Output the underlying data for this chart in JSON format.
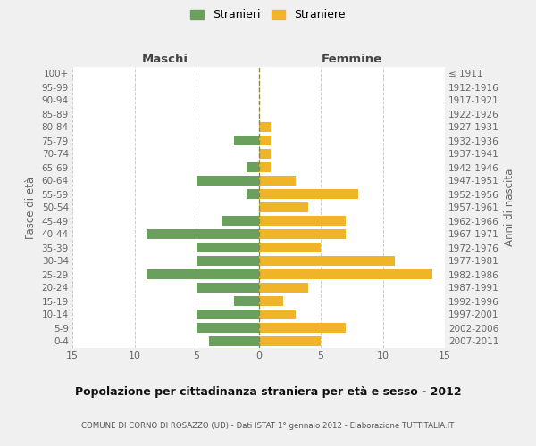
{
  "age_groups": [
    "100+",
    "95-99",
    "90-94",
    "85-89",
    "80-84",
    "75-79",
    "70-74",
    "65-69",
    "60-64",
    "55-59",
    "50-54",
    "45-49",
    "40-44",
    "35-39",
    "30-34",
    "25-29",
    "20-24",
    "15-19",
    "10-14",
    "5-9",
    "0-4"
  ],
  "birth_years": [
    "≤ 1911",
    "1912-1916",
    "1917-1921",
    "1922-1926",
    "1927-1931",
    "1932-1936",
    "1937-1941",
    "1942-1946",
    "1947-1951",
    "1952-1956",
    "1957-1961",
    "1962-1966",
    "1967-1971",
    "1972-1976",
    "1977-1981",
    "1982-1986",
    "1987-1991",
    "1992-1996",
    "1997-2001",
    "2002-2006",
    "2007-2011"
  ],
  "maschi": [
    0,
    0,
    0,
    0,
    0,
    2,
    0,
    1,
    5,
    1,
    0,
    3,
    9,
    5,
    5,
    9,
    5,
    2,
    5,
    5,
    4
  ],
  "femmine": [
    0,
    0,
    0,
    0,
    1,
    1,
    1,
    1,
    3,
    8,
    4,
    7,
    7,
    5,
    11,
    14,
    4,
    2,
    3,
    7,
    5
  ],
  "maschi_color": "#6a9f5e",
  "femmine_color": "#f0b429",
  "background_color": "#f0f0f0",
  "bar_background": "#ffffff",
  "grid_color": "#cccccc",
  "title": "Popolazione per cittadinanza straniera per età e sesso - 2012",
  "subtitle": "COMUNE DI CORNO DI ROSAZZO (UD) - Dati ISTAT 1° gennaio 2012 - Elaborazione TUTTITALIA.IT",
  "xlabel_left": "Maschi",
  "xlabel_right": "Femmine",
  "ylabel_left": "Fasce di età",
  "ylabel_right": "Anni di nascita",
  "legend_maschi": "Stranieri",
  "legend_femmine": "Straniere",
  "xlim": 15
}
